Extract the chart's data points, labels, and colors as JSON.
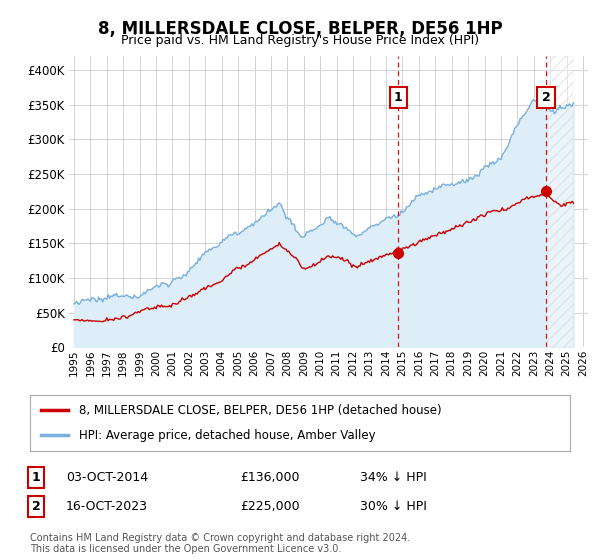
{
  "title": "8, MILLERSDALE CLOSE, BELPER, DE56 1HP",
  "subtitle": "Price paid vs. HM Land Registry's House Price Index (HPI)",
  "ylim": [
    0,
    420000
  ],
  "yticks": [
    0,
    50000,
    100000,
    150000,
    200000,
    250000,
    300000,
    350000,
    400000
  ],
  "hpi_color": "#7aafe0",
  "price_color": "#cc0000",
  "dashed_color": "#cc0000",
  "bg_color": "#ffffff",
  "grid_color": "#cccccc",
  "fill_color": "#ddeeff",
  "purchase1": {
    "date": "03-OCT-2014",
    "price": 136000,
    "pct": "34%",
    "label": "1",
    "year": 2014.75
  },
  "purchase2": {
    "date": "16-OCT-2023",
    "price": 225000,
    "pct": "30%",
    "label": "2",
    "year": 2023.75
  },
  "footnote": "Contains HM Land Registry data © Crown copyright and database right 2024.\nThis data is licensed under the Open Government Licence v3.0.",
  "legend_house": "8, MILLERSDALE CLOSE, BELPER, DE56 1HP (detached house)",
  "legend_hpi": "HPI: Average price, detached house, Amber Valley",
  "xstart": 1995,
  "xend": 2026
}
